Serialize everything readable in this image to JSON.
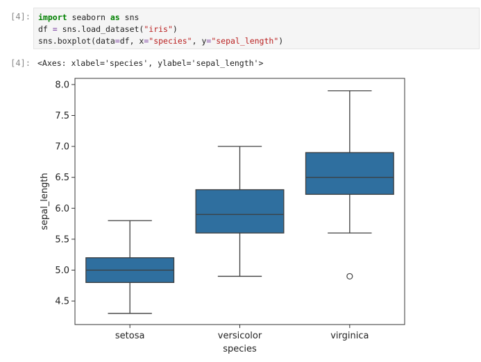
{
  "input_cell": {
    "prompt": "[4]:",
    "code_lines": [
      [
        {
          "t": "import",
          "c": "kw"
        },
        {
          "t": " seaborn ",
          "c": ""
        },
        {
          "t": "as",
          "c": "kw"
        },
        {
          "t": " sns",
          "c": ""
        }
      ],
      [
        {
          "t": "df ",
          "c": ""
        },
        {
          "t": "=",
          "c": "op"
        },
        {
          "t": " sns.load_dataset(",
          "c": ""
        },
        {
          "t": "\"iris\"",
          "c": "str"
        },
        {
          "t": ")",
          "c": ""
        }
      ],
      [
        {
          "t": "sns.boxplot(data",
          "c": ""
        },
        {
          "t": "=",
          "c": "op"
        },
        {
          "t": "df, x",
          "c": ""
        },
        {
          "t": "=",
          "c": "op"
        },
        {
          "t": "\"species\"",
          "c": "str"
        },
        {
          "t": ", y",
          "c": ""
        },
        {
          "t": "=",
          "c": "op"
        },
        {
          "t": "\"sepal_length\"",
          "c": "str"
        },
        {
          "t": ")",
          "c": ""
        }
      ]
    ]
  },
  "output_cell": {
    "prompt": "[4]:",
    "text": "<Axes: xlabel='species', ylabel='sepal_length'>"
  },
  "chart_data": {
    "type": "boxplot",
    "xlabel": "species",
    "ylabel": "sepal_length",
    "ylim": [
      4.12,
      8.1
    ],
    "yticks": [
      4.5,
      5.0,
      5.5,
      6.0,
      6.5,
      7.0,
      7.5,
      8.0
    ],
    "ytick_labels": [
      "4.5",
      "5.0",
      "5.5",
      "6.0",
      "6.5",
      "7.0",
      "7.5",
      "8.0"
    ],
    "categories": [
      "setosa",
      "versicolor",
      "virginica"
    ],
    "box_color": "#2f6f9f",
    "line_color": "#3d3d3d",
    "boxes": [
      {
        "category": "setosa",
        "whisker_low": 4.3,
        "q1": 4.8,
        "median": 5.0,
        "q3": 5.2,
        "whisker_high": 5.8,
        "outliers": []
      },
      {
        "category": "versicolor",
        "whisker_low": 4.9,
        "q1": 5.6,
        "median": 5.9,
        "q3": 6.3,
        "whisker_high": 7.0,
        "outliers": []
      },
      {
        "category": "virginica",
        "whisker_low": 5.6,
        "q1": 6.225,
        "median": 6.5,
        "q3": 6.9,
        "whisker_high": 7.9,
        "outliers": [
          4.9
        ]
      }
    ],
    "grid": false
  }
}
